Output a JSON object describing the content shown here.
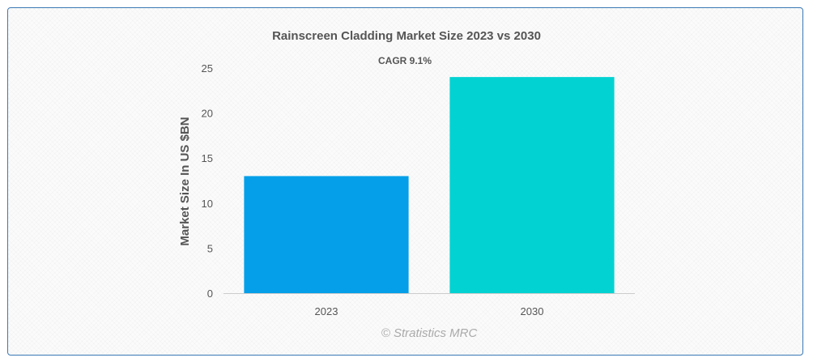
{
  "chart_data": {
    "type": "bar",
    "title": "Rainscreen Cladding Market Size 2023 vs 2030",
    "subtitle": "CAGR 9.1%",
    "xlabel": "",
    "ylabel": "Market Size In US $BN",
    "categories": [
      "2023",
      "2030"
    ],
    "values": [
      13,
      24
    ],
    "colors": [
      "#049fe8",
      "#03d2d2"
    ],
    "ylim": [
      0,
      25
    ],
    "yticks": [
      0,
      5,
      10,
      15,
      20,
      25
    ],
    "grid": false,
    "legend": "none"
  },
  "credit": "© Stratistics MRC"
}
